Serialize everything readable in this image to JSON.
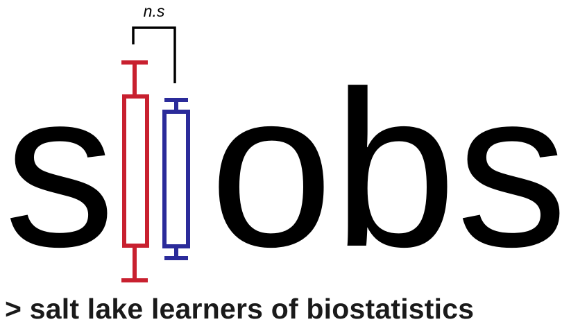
{
  "logo": {
    "letter_s_left": "s",
    "letters_right": "obs",
    "significance_label": "n.s",
    "tagline": "> salt lake learners of biostatistics",
    "colors": {
      "text": "#000000",
      "tagline": "#1a1a1a",
      "box_red": "#c8202f",
      "box_blue": "#2b2b9a"
    },
    "icons": [
      "red-boxplot-icon",
      "blue-boxplot-icon",
      "significance-bracket-icon"
    ]
  }
}
